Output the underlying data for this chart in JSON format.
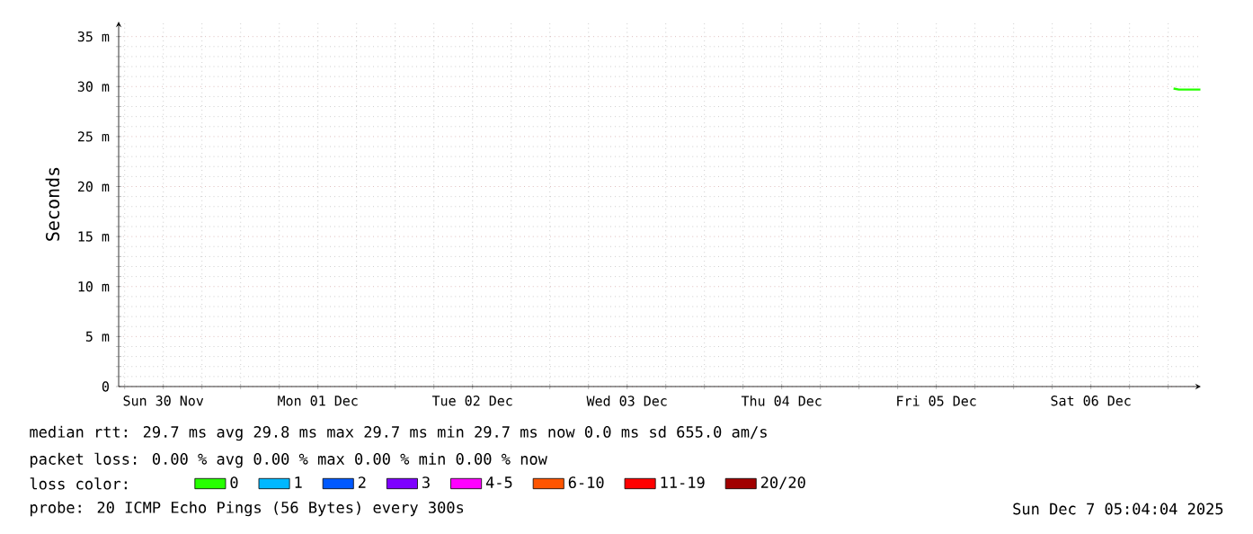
{
  "chart_data": {
    "type": "line",
    "ylabel": "Seconds",
    "xlim": [
      "2025-11-30T05:04",
      "2025-12-07T05:04"
    ],
    "xticks": [
      {
        "value": "2025-11-30T06:00",
        "label": null
      },
      {
        "value": "2025-11-30T12:00",
        "label": "Sun 30 Nov"
      },
      {
        "value": "2025-11-30T18:00",
        "label": null
      },
      {
        "value": "2025-12-01T00:00",
        "label": null
      },
      {
        "value": "2025-12-01T06:00",
        "label": null
      },
      {
        "value": "2025-12-01T12:00",
        "label": "Mon 01 Dec"
      },
      {
        "value": "2025-12-01T18:00",
        "label": null
      },
      {
        "value": "2025-12-02T00:00",
        "label": null
      },
      {
        "value": "2025-12-02T06:00",
        "label": null
      },
      {
        "value": "2025-12-02T12:00",
        "label": "Tue 02 Dec"
      },
      {
        "value": "2025-12-02T18:00",
        "label": null
      },
      {
        "value": "2025-12-03T00:00",
        "label": null
      },
      {
        "value": "2025-12-03T06:00",
        "label": null
      },
      {
        "value": "2025-12-03T12:00",
        "label": "Wed 03 Dec"
      },
      {
        "value": "2025-12-03T18:00",
        "label": null
      },
      {
        "value": "2025-12-04T00:00",
        "label": null
      },
      {
        "value": "2025-12-04T06:00",
        "label": null
      },
      {
        "value": "2025-12-04T12:00",
        "label": "Thu 04 Dec"
      },
      {
        "value": "2025-12-04T18:00",
        "label": null
      },
      {
        "value": "2025-12-05T00:00",
        "label": null
      },
      {
        "value": "2025-12-05T06:00",
        "label": null
      },
      {
        "value": "2025-12-05T12:00",
        "label": "Fri 05 Dec"
      },
      {
        "value": "2025-12-05T18:00",
        "label": null
      },
      {
        "value": "2025-12-06T00:00",
        "label": null
      },
      {
        "value": "2025-12-06T06:00",
        "label": null
      },
      {
        "value": "2025-12-06T12:00",
        "label": "Sat 06 Dec"
      },
      {
        "value": "2025-12-06T18:00",
        "label": null
      },
      {
        "value": "2025-12-07T00:00",
        "label": null
      }
    ],
    "ylim": [
      0,
      36.5
    ],
    "yticks": [
      0,
      {
        "value": 1,
        "label": null
      },
      {
        "value": 2,
        "label": null
      },
      {
        "value": 3,
        "label": null
      },
      {
        "value": 4,
        "label": null
      },
      {
        "value": 5,
        "label": "5 m"
      },
      {
        "value": 6,
        "label": null
      },
      {
        "value": 7,
        "label": null
      },
      {
        "value": 8,
        "label": null
      },
      {
        "value": 9,
        "label": null
      },
      {
        "value": 10,
        "label": "10 m"
      },
      {
        "value": 11,
        "label": null
      },
      {
        "value": 12,
        "label": null
      },
      {
        "value": 13,
        "label": null
      },
      {
        "value": 14,
        "label": null
      },
      {
        "value": 15,
        "label": "15 m"
      },
      {
        "value": 16,
        "label": null
      },
      {
        "value": 17,
        "label": null
      },
      {
        "value": 18,
        "label": null
      },
      {
        "value": 19,
        "label": null
      },
      {
        "value": 20,
        "label": "20 m"
      },
      {
        "value": 21,
        "label": null
      },
      {
        "value": 22,
        "label": null
      },
      {
        "value": 23,
        "label": null
      },
      {
        "value": 24,
        "label": null
      },
      {
        "value": 25,
        "label": "25 m"
      },
      {
        "value": 26,
        "label": null
      },
      {
        "value": 27,
        "label": null
      },
      {
        "value": 28,
        "label": null
      },
      {
        "value": 29,
        "label": null
      },
      {
        "value": 30,
        "label": "30 m"
      },
      {
        "value": 31,
        "label": null
      },
      {
        "value": 32,
        "label": null
      },
      {
        "value": 33,
        "label": null
      },
      {
        "value": 34,
        "label": null
      },
      {
        "value": 35,
        "label": "35 m"
      }
    ],
    "grid": true,
    "legend": "bottom",
    "legend_title": "loss color:",
    "x": [
      "2025-12-07T00:50",
      "2025-12-07T01:40",
      "2025-12-07T02:30",
      "2025-12-07T03:20",
      "2025-12-07T04:10",
      "2025-12-07T05:00"
    ],
    "series": [
      {
        "name": "0",
        "color": "#26ff00",
        "values": [
          29.8,
          29.7,
          29.7,
          29.7,
          29.7,
          29.7
        ]
      },
      {
        "name": "1",
        "color": "#00b8ff",
        "values": [
          null,
          null,
          null,
          null,
          null,
          null
        ]
      },
      {
        "name": "2",
        "color": "#0059ff",
        "values": [
          null,
          null,
          null,
          null,
          null,
          null
        ]
      },
      {
        "name": "3",
        "color": "#7e00ff",
        "values": [
          null,
          null,
          null,
          null,
          null,
          null
        ]
      },
      {
        "name": "4-5",
        "color": "#ff00ff",
        "values": [
          null,
          null,
          null,
          null,
          null,
          null
        ]
      },
      {
        "name": "6-10",
        "color": "#ff5500",
        "values": [
          null,
          null,
          null,
          null,
          null,
          null
        ]
      },
      {
        "name": "11-19",
        "color": "#ff0000",
        "values": [
          null,
          null,
          null,
          null,
          null,
          null
        ]
      },
      {
        "name": "20/20",
        "color": "#a10000",
        "values": [
          null,
          null,
          null,
          null,
          null,
          null
        ]
      }
    ],
    "annotations": [
      "median rtt:  29.7 ms avg  29.8 ms max  29.7 ms min  29.7 ms now  0.0 ms sd  655.0   am/s",
      "packet loss: 0.00 % avg  0.00 % max  0.00 % min  0.00 % now",
      "probe:       20 ICMP Echo Pings (56 Bytes) every 300s",
      "Sun Dec  7 05:04:04 2025"
    ]
  }
}
